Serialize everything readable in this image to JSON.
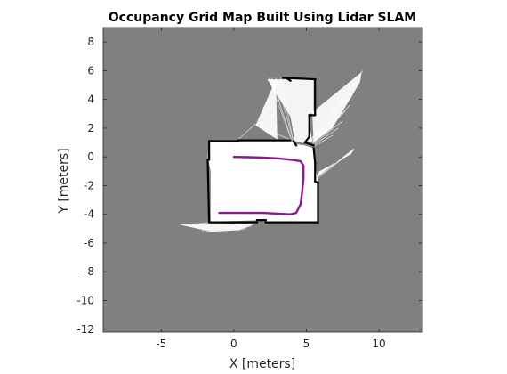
{
  "chart_data": {
    "type": "heatmap",
    "title": "Occupancy Grid Map Built Using Lidar SLAM",
    "xlabel": "X [meters]",
    "ylabel": "Y [meters]",
    "xlim": [
      -9,
      13
    ],
    "ylim": [
      -12.2,
      9
    ],
    "xticks": [
      -5,
      0,
      5,
      10
    ],
    "yticks": [
      8,
      6,
      4,
      2,
      0,
      -2,
      -4,
      -6,
      -8,
      -10,
      -12
    ],
    "grid": false,
    "colors": {
      "unknown": "#808080",
      "free": "#ffffff",
      "occupied": "#000000",
      "trajectory": "#8b1a8f",
      "axis": "#262626",
      "ray": "#d9d9d9"
    },
    "free_regions": [
      [
        [
          -1.7,
          1.1
        ],
        [
          0.3,
          1.1
        ],
        [
          0.3,
          1.2
        ],
        [
          4.0,
          1.2
        ],
        [
          4.2,
          0.9
        ],
        [
          4.9,
          0.8
        ],
        [
          5.5,
          0.6
        ],
        [
          5.6,
          -0.5
        ],
        [
          5.8,
          -1.8
        ],
        [
          5.8,
          -4.6
        ],
        [
          2.4,
          -4.6
        ],
        [
          2.1,
          -4.4
        ],
        [
          -1.6,
          -4.5
        ],
        [
          -1.6,
          -1.0
        ],
        [
          -1.8,
          0.0
        ]
      ],
      [
        [
          2.3,
          5.4
        ],
        [
          5.5,
          5.4
        ],
        [
          5.5,
          3.0
        ],
        [
          5.2,
          3.0
        ],
        [
          5.2,
          2.3
        ],
        [
          5.4,
          1.1
        ],
        [
          5.0,
          0.9
        ],
        [
          4.2,
          1.1
        ],
        [
          3.9,
          2.8
        ]
      ],
      [
        [
          5.4,
          3.1
        ],
        [
          8.8,
          5.9
        ],
        [
          8.7,
          5.2
        ],
        [
          6.8,
          2.0
        ],
        [
          5.5,
          1.0
        ]
      ],
      [
        [
          5.6,
          -1.5
        ],
        [
          8.3,
          0.6
        ],
        [
          8.1,
          0.2
        ],
        [
          5.9,
          -1.0
        ]
      ],
      [
        [
          -1.6,
          -4.6
        ],
        [
          -3.8,
          -4.7
        ],
        [
          -1.6,
          -5.2
        ],
        [
          0.4,
          -5.1
        ],
        [
          1.3,
          -4.7
        ]
      ],
      [
        [
          2.9,
          5.4
        ],
        [
          1.5,
          2.2
        ],
        [
          3.0,
          1.2
        ]
      ]
    ],
    "wall_segments": [
      [
        [
          -1.7,
          1.1
        ],
        [
          0.3,
          1.1
        ]
      ],
      [
        [
          0.3,
          1.15
        ],
        [
          3.9,
          1.15
        ]
      ],
      [
        [
          -1.7,
          1.1
        ],
        [
          -1.7,
          -0.2
        ]
      ],
      [
        [
          -1.8,
          -0.2
        ],
        [
          -1.7,
          -4.5
        ]
      ],
      [
        [
          -1.7,
          -4.55
        ],
        [
          1.6,
          -4.55
        ]
      ],
      [
        [
          1.6,
          -4.4
        ],
        [
          2.2,
          -4.4
        ]
      ],
      [
        [
          2.2,
          -4.55
        ],
        [
          5.8,
          -4.55
        ]
      ],
      [
        [
          5.8,
          -4.6
        ],
        [
          5.8,
          -1.8
        ]
      ],
      [
        [
          5.8,
          -1.8
        ],
        [
          5.6,
          -1.7
        ]
      ],
      [
        [
          5.6,
          -1.7
        ],
        [
          5.6,
          -0.4
        ]
      ],
      [
        [
          5.6,
          -0.4
        ],
        [
          5.5,
          0.6
        ]
      ],
      [
        [
          5.5,
          0.8
        ],
        [
          4.9,
          1.0
        ]
      ],
      [
        [
          4.9,
          1.0
        ],
        [
          5.2,
          1.4
        ]
      ],
      [
        [
          5.2,
          1.4
        ],
        [
          5.2,
          2.9
        ]
      ],
      [
        [
          5.2,
          2.9
        ],
        [
          5.6,
          2.9
        ]
      ],
      [
        [
          5.6,
          3.0
        ],
        [
          5.6,
          5.4
        ]
      ],
      [
        [
          5.6,
          5.4
        ],
        [
          3.4,
          5.5
        ]
      ],
      [
        [
          3.6,
          5.5
        ],
        [
          3.9,
          5.3
        ]
      ],
      [
        [
          4.1,
          1.1
        ],
        [
          4.3,
          0.8
        ]
      ]
    ],
    "trajectory": {
      "x": [
        0.0,
        1.0,
        2.0,
        3.0,
        4.0,
        4.6,
        4.8,
        4.8,
        4.7,
        4.6,
        4.3,
        3.9,
        3.0,
        2.0,
        1.0,
        0.0,
        -1.0
      ],
      "y": [
        0.0,
        -0.02,
        -0.05,
        -0.1,
        -0.2,
        -0.3,
        -0.6,
        -1.5,
        -2.5,
        -3.3,
        -3.9,
        -4.0,
        -3.95,
        -3.9,
        -3.9,
        -3.9,
        -3.9
      ]
    },
    "rays": [
      [
        [
          2.4,
          5.5
        ],
        [
          4.0,
          1.1
        ]
      ],
      [
        [
          2.6,
          5.5
        ],
        [
          4.0,
          1.1
        ]
      ],
      [
        [
          2.9,
          5.5
        ],
        [
          4.1,
          1.1
        ]
      ],
      [
        [
          3.2,
          5.5
        ],
        [
          4.1,
          1.1
        ]
      ],
      [
        [
          5.3,
          1.2
        ],
        [
          8.9,
          6.0
        ]
      ],
      [
        [
          5.3,
          1.1
        ],
        [
          8.7,
          5.5
        ]
      ],
      [
        [
          5.4,
          1.1
        ],
        [
          8.4,
          4.8
        ]
      ],
      [
        [
          5.4,
          1.0
        ],
        [
          8.2,
          4.3
        ]
      ],
      [
        [
          5.4,
          1.0
        ],
        [
          8.0,
          3.6
        ]
      ],
      [
        [
          5.4,
          0.9
        ],
        [
          7.7,
          3.2
        ]
      ],
      [
        [
          5.5,
          0.9
        ],
        [
          7.5,
          2.5
        ]
      ],
      [
        [
          5.5,
          0.8
        ],
        [
          7.2,
          2.0
        ]
      ],
      [
        [
          5.5,
          0.7
        ],
        [
          6.8,
          1.5
        ]
      ],
      [
        [
          5.6,
          -1.6
        ],
        [
          8.3,
          0.5
        ]
      ],
      [
        [
          5.6,
          -1.5
        ],
        [
          7.9,
          0.2
        ]
      ],
      [
        [
          4.1,
          1.1
        ],
        [
          1.4,
          2.3
        ]
      ],
      [
        [
          0.3,
          1.2
        ],
        [
          1.4,
          2.2
        ]
      ],
      [
        [
          -1.7,
          -4.6
        ],
        [
          -3.7,
          -4.7
        ]
      ],
      [
        [
          -1.6,
          -4.6
        ],
        [
          -2.2,
          -5.2
        ]
      ],
      [
        [
          1.3,
          -4.6
        ],
        [
          0.6,
          -5.1
        ]
      ],
      [
        [
          1.3,
          -4.6
        ],
        [
          -0.6,
          -5.0
        ]
      ],
      [
        [
          1.5,
          -4.6
        ],
        [
          1.0,
          -4.9
        ]
      ]
    ]
  }
}
